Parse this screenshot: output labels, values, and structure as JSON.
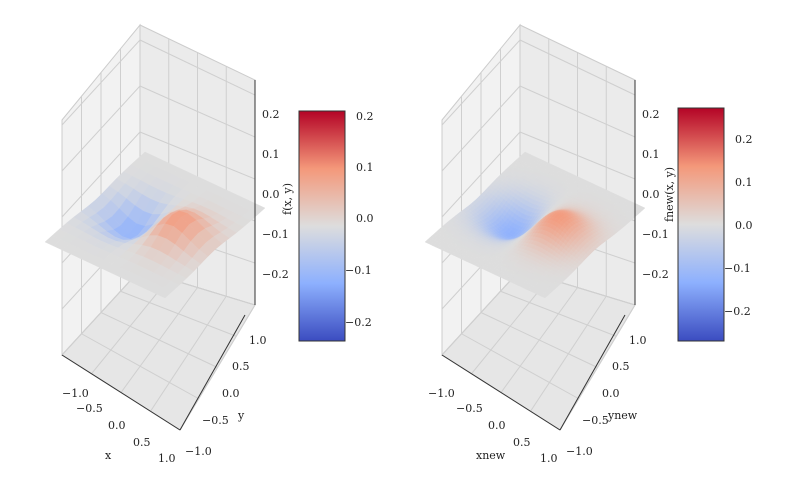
{
  "chart_data": [
    {
      "type": "surface3d",
      "panel": "left",
      "xlabel": "x",
      "ylabel": "y",
      "zlabel": "f(x, y)",
      "x_ticks": [
        "−1.0",
        "−0.5",
        "0.0",
        "0.5",
        "1.0"
      ],
      "y_ticks": [
        "−1.0",
        "−0.5",
        "0.0",
        "0.5",
        "1.0"
      ],
      "z_ticks": [
        "0.2",
        "0.1",
        "0.0",
        "−0.1",
        "−0.2"
      ],
      "z_range": [
        -0.25,
        0.25
      ],
      "colormap": "coolwarm",
      "resolution": "coarse",
      "colorbar": {
        "ticks": [
          "0.2",
          "0.1",
          "0.0",
          "−0.1",
          "−0.2"
        ],
        "range": [
          -0.23,
          0.22
        ]
      }
    },
    {
      "type": "surface3d",
      "panel": "right",
      "xlabel": "xnew",
      "ylabel": "ynew",
      "zlabel": "fnew(x, y)",
      "x_ticks": [
        "−1.0",
        "−0.5",
        "0.0",
        "0.5",
        "1.0"
      ],
      "y_ticks": [
        "−1.0",
        "−0.5",
        "0.0",
        "0.5",
        "1.0"
      ],
      "z_ticks": [
        "0.2",
        "0.1",
        "0.0",
        "−0.1",
        "−0.2"
      ],
      "z_range": [
        -0.25,
        0.25
      ],
      "colormap": "coolwarm",
      "resolution": "fine",
      "colorbar": {
        "ticks": [
          "0.2",
          "0.1",
          "0.0",
          "−0.1",
          "−0.2"
        ],
        "range": [
          -0.27,
          0.27
        ]
      }
    }
  ],
  "colors": {
    "cool": "#3b4cc0",
    "neutral": "#dddddd",
    "warm": "#b40426",
    "pane": "#f2f2f2",
    "grid": "#cfcfcf"
  }
}
